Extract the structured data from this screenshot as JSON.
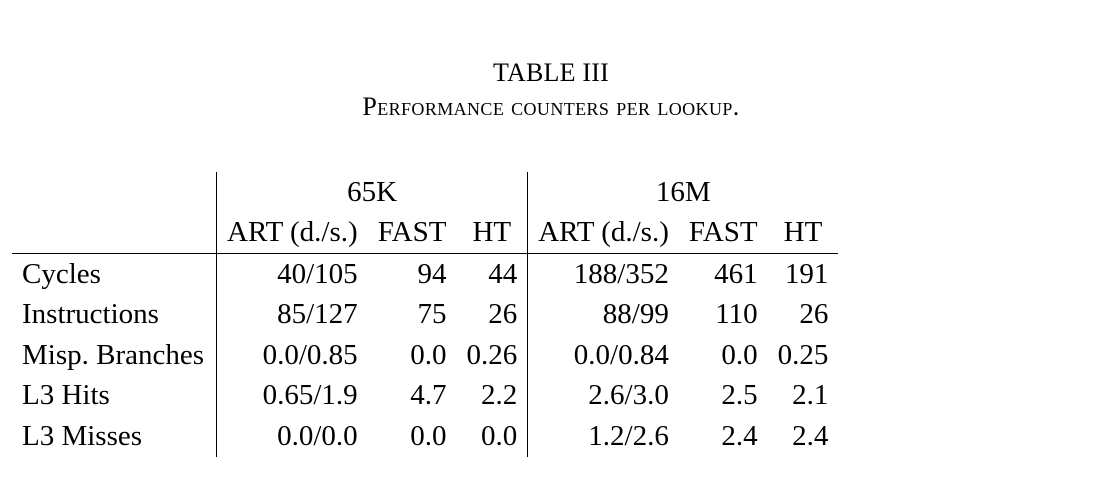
{
  "caption": {
    "title": "TABLE III",
    "subtitle": "Performance counters per lookup."
  },
  "table": {
    "groups": [
      "65K",
      "16M"
    ],
    "subheaders": [
      "ART (d./s.)",
      "FAST",
      "HT",
      "ART (d./s.)",
      "FAST",
      "HT"
    ],
    "rows": [
      {
        "label": "Cycles",
        "cells": [
          "40/105",
          "94",
          "44",
          "188/352",
          "461",
          "191"
        ]
      },
      {
        "label": "Instructions",
        "cells": [
          "85/127",
          "75",
          "26",
          "88/99",
          "110",
          "26"
        ]
      },
      {
        "label": "Misp. Branches",
        "cells": [
          "0.0/0.85",
          "0.0",
          "0.26",
          "0.0/0.84",
          "0.0",
          "0.25"
        ]
      },
      {
        "label": "L3 Hits",
        "cells": [
          "0.65/1.9",
          "4.7",
          "2.2",
          "2.6/3.0",
          "2.5",
          "2.1"
        ]
      },
      {
        "label": "L3 Misses",
        "cells": [
          "0.0/0.0",
          "0.0",
          "0.0",
          "1.2/2.6",
          "2.4",
          "2.4"
        ]
      }
    ]
  }
}
